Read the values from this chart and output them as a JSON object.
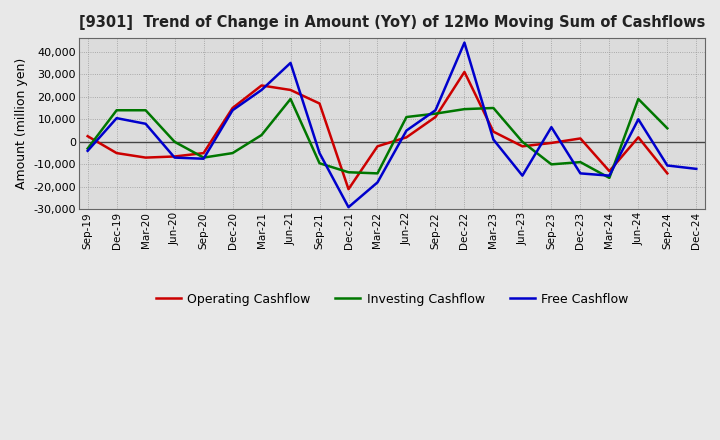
{
  "title": "[9301]  Trend of Change in Amount (YoY) of 12Mo Moving Sum of Cashflows",
  "ylabel": "Amount (million yen)",
  "ylim": [
    -30000,
    46000
  ],
  "yticks": [
    -30000,
    -20000,
    -10000,
    0,
    10000,
    20000,
    30000,
    40000
  ],
  "fig_facecolor": "#e8e8e8",
  "plot_facecolor": "#dcdcdc",
  "grid_color": "#999999",
  "x_labels": [
    "Sep-19",
    "Dec-19",
    "Mar-20",
    "Jun-20",
    "Sep-20",
    "Dec-20",
    "Mar-21",
    "Jun-21",
    "Sep-21",
    "Dec-21",
    "Mar-22",
    "Jun-22",
    "Sep-22",
    "Dec-22",
    "Mar-23",
    "Jun-23",
    "Sep-23",
    "Dec-23",
    "Mar-24",
    "Jun-24",
    "Sep-24",
    "Dec-24"
  ],
  "operating": [
    2500,
    -5000,
    -7000,
    -6500,
    -5000,
    15000,
    25000,
    23000,
    17000,
    -21000,
    -2000,
    2000,
    11000,
    31000,
    4500,
    -2000,
    -500,
    1500,
    -13000,
    2000,
    -14000,
    null
  ],
  "investing": [
    -3000,
    14000,
    14000,
    0,
    -7000,
    -5000,
    3000,
    19000,
    -9500,
    -13500,
    -14000,
    11000,
    12500,
    14500,
    15000,
    0,
    -10000,
    -9000,
    -16000,
    19000,
    6000,
    null
  ],
  "free": [
    -4000,
    10500,
    8000,
    -7000,
    -7500,
    14000,
    23000,
    35000,
    -5000,
    -29000,
    -18000,
    5000,
    14000,
    44000,
    1000,
    -15000,
    6500,
    -14000,
    -15000,
    10000,
    -10500,
    -12000
  ],
  "op_color": "#cc0000",
  "inv_color": "#007700",
  "free_color": "#0000cc",
  "line_width": 1.8,
  "legend_labels": [
    "Operating Cashflow",
    "Investing Cashflow",
    "Free Cashflow"
  ]
}
